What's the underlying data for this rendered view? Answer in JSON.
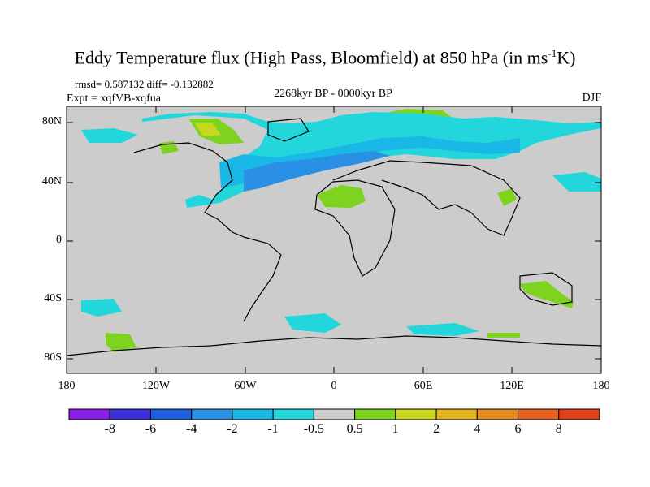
{
  "title": {
    "main": "Eddy Temperature flux (High Pass, Bloomfield) at 850 hPa (in ms",
    "sup": "-1",
    "end": "K)"
  },
  "stats": {
    "rmsd_diff": "rmsd= 0.587132 diff= -0.132882",
    "expt": "Expt = xqfVB-xqfua",
    "period": "2268kyr BP - 0000kyr BP",
    "season": "DJF"
  },
  "axes": {
    "y_ticks": [
      "80N",
      "40N",
      "0",
      "40S",
      "80S"
    ],
    "x_ticks": [
      "180",
      "120W",
      "60W",
      "0",
      "60E",
      "120E",
      "180"
    ]
  },
  "colorbar": {
    "labels": [
      "-8",
      "-6",
      "-4",
      "-2",
      "-1",
      "-0.5",
      "0.5",
      "1",
      "2",
      "4",
      "6",
      "8"
    ],
    "colors": [
      "#8a1ee6",
      "#3a2fd8",
      "#1f5fe0",
      "#2a90e6",
      "#1ab8e6",
      "#22d6dc",
      "#cccccc",
      "#7ed320",
      "#c8d61e",
      "#e6b21e",
      "#e68a1e",
      "#e6621e",
      "#e0401a"
    ]
  },
  "colors": {
    "land_bg": "#cccccc",
    "coast": "#000000"
  }
}
